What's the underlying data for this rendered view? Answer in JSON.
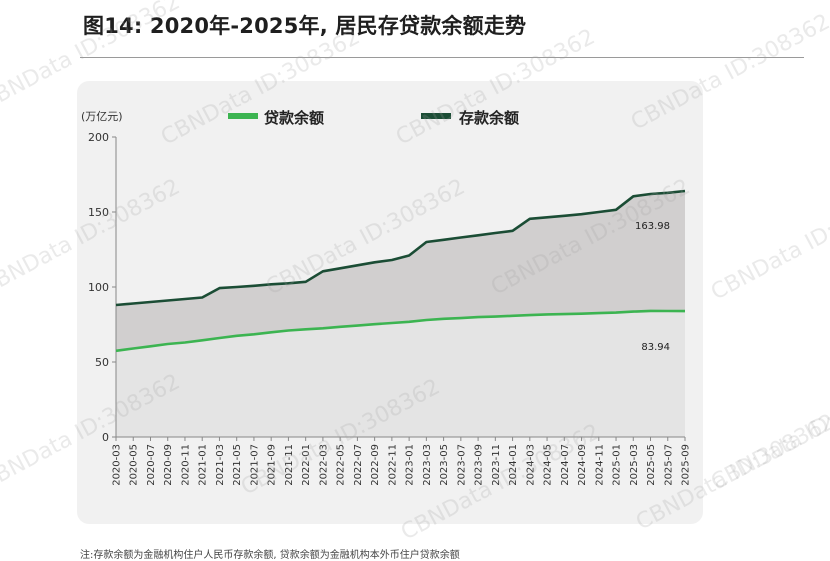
{
  "title": "图14: 2020年-2025年, 居民存贷款余额走势",
  "note": "注:存款余额为金融机构住户人民币存款余额, 贷款余额为金融机构本外币住户贷款余额",
  "watermark": "CBNData ID:308362",
  "chart_data": {
    "type": "area",
    "ylabel": "(万亿元)",
    "ylim": [
      0,
      200
    ],
    "yticks": [
      0,
      50,
      100,
      150,
      200
    ],
    "categories": [
      "2020-03",
      "2020-05",
      "2020-07",
      "2020-09",
      "2020-11",
      "2021-01",
      "2021-03",
      "2021-05",
      "2021-07",
      "2021-09",
      "2021-11",
      "2022-01",
      "2022-03",
      "2022-05",
      "2022-07",
      "2022-09",
      "2022-11",
      "2023-01",
      "2023-03",
      "2023-05",
      "2023-07",
      "2023-09",
      "2023-11",
      "2024-01",
      "2024-03",
      "2024-05",
      "2024-07",
      "2024-09",
      "2024-11",
      "2025-01",
      "2025-03",
      "2025-05",
      "2025-07",
      "2025-09"
    ],
    "series": [
      {
        "name": "存款余额",
        "color": "#1b4d35",
        "end_label": "163.98",
        "values": [
          88.0,
          89.0,
          90.0,
          91.0,
          92.0,
          93.0,
          99.3,
          100.0,
          100.8,
          101.8,
          102.5,
          103.5,
          110.5,
          112.5,
          114.5,
          116.5,
          118.0,
          121.0,
          130.0,
          131.5,
          133.0,
          134.5,
          136.0,
          137.5,
          145.5,
          146.5,
          147.5,
          148.5,
          150.0,
          151.5,
          160.5,
          162.0,
          162.8,
          163.98
        ]
      },
      {
        "name": "贷款余额",
        "color": "#3cb451",
        "end_label": "83.94",
        "values": [
          57.5,
          59.0,
          60.5,
          62.0,
          63.0,
          64.5,
          66.0,
          67.5,
          68.5,
          69.8,
          71.0,
          71.8,
          72.5,
          73.5,
          74.3,
          75.2,
          76.0,
          76.8,
          78.0,
          78.8,
          79.3,
          79.9,
          80.3,
          80.8,
          81.3,
          81.7,
          81.9,
          82.2,
          82.6,
          82.9,
          83.6,
          84.1,
          84.0,
          83.94
        ]
      }
    ]
  }
}
